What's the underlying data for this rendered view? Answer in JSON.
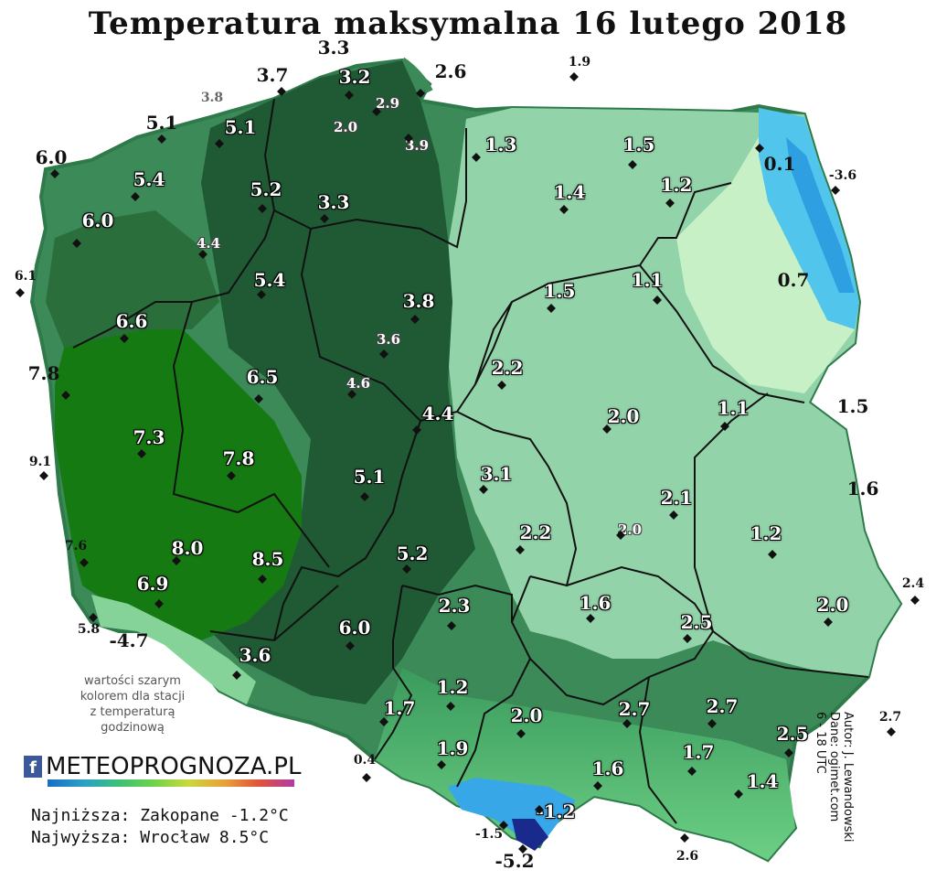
{
  "title": "Temperatura maksymalna 16 lutego 2018",
  "note_lines": [
    "wartości szarym",
    "kolorem dla stacji",
    "z temperaturą",
    "godzinową"
  ],
  "logo": {
    "icon": "facebook-icon",
    "text": "METEOPROGNOZA.PL"
  },
  "stats": {
    "min": "Najniższa: Zakopane -1.2°C",
    "max": "Najwyższa: Wrocław 8.5°C"
  },
  "credit_lines": [
    "Autor: J. Lewandowski",
    "Dane: ogimet.com",
    "6 - 18 UTC"
  ],
  "colors": {
    "dark_green": "#1f5a35",
    "mid_green": "#3c8a58",
    "light_green": "#92d3a9",
    "pale_green": "#c8f0c6",
    "cyan": "#52c5ec",
    "bright_green": "#157a12"
  },
  "stations": [
    {
      "id": "s1",
      "value": "3.3",
      "style": "b"
    },
    {
      "id": "s2",
      "value": "3.7",
      "style": "b"
    },
    {
      "id": "s3",
      "value": "3.2",
      "style": "w"
    },
    {
      "id": "s4",
      "value": "2.6",
      "style": "b"
    },
    {
      "id": "s5",
      "value": "1.9",
      "style": "bs"
    },
    {
      "id": "s6",
      "value": "3.8",
      "style": "gr"
    },
    {
      "id": "s7",
      "value": "2.9",
      "style": "g"
    },
    {
      "id": "s8",
      "value": "5.1",
      "style": "b"
    },
    {
      "id": "s9",
      "value": "5.1",
      "style": "w"
    },
    {
      "id": "s10",
      "value": "2.0",
      "style": "g"
    },
    {
      "id": "s11",
      "value": "3.9",
      "style": "g"
    },
    {
      "id": "s12",
      "value": "1.3",
      "style": "w"
    },
    {
      "id": "s13",
      "value": "1.5",
      "style": "w"
    },
    {
      "id": "s14",
      "value": "0.1",
      "style": "b"
    },
    {
      "id": "s15",
      "value": "-3.6",
      "style": "bs"
    },
    {
      "id": "s16",
      "value": "6.0",
      "style": "b"
    },
    {
      "id": "s17",
      "value": "5.4",
      "style": "w"
    },
    {
      "id": "s18",
      "value": "5.2",
      "style": "w"
    },
    {
      "id": "s19",
      "value": "3.3",
      "style": "w"
    },
    {
      "id": "s20",
      "value": "1.4",
      "style": "w"
    },
    {
      "id": "s21",
      "value": "1.2",
      "style": "w"
    },
    {
      "id": "s22",
      "value": "6.0",
      "style": "w"
    },
    {
      "id": "s23",
      "value": "4.4",
      "style": "g"
    },
    {
      "id": "s24",
      "value": "6.1",
      "style": "bs"
    },
    {
      "id": "s25",
      "value": "5.4",
      "style": "w"
    },
    {
      "id": "s26",
      "value": "0.7",
      "style": "b"
    },
    {
      "id": "s27",
      "value": "3.8",
      "style": "w"
    },
    {
      "id": "s28",
      "value": "1.5",
      "style": "w"
    },
    {
      "id": "s29",
      "value": "1.1",
      "style": "w"
    },
    {
      "id": "s30",
      "value": "6.6",
      "style": "w"
    },
    {
      "id": "s31",
      "value": "3.6",
      "style": "g"
    },
    {
      "id": "s32",
      "value": "7.8",
      "style": "b"
    },
    {
      "id": "s33",
      "value": "6.5",
      "style": "w"
    },
    {
      "id": "s34",
      "value": "4.6",
      "style": "g"
    },
    {
      "id": "s35",
      "value": "2.2",
      "style": "w"
    },
    {
      "id": "s36",
      "value": "4.4",
      "style": "w"
    },
    {
      "id": "s37",
      "value": "2.0",
      "style": "w"
    },
    {
      "id": "s38",
      "value": "1.1",
      "style": "w"
    },
    {
      "id": "s39",
      "value": "1.5",
      "style": "b"
    },
    {
      "id": "s40",
      "value": "7.3",
      "style": "w"
    },
    {
      "id": "s41",
      "value": "9.1",
      "style": "bs"
    },
    {
      "id": "s42",
      "value": "7.8",
      "style": "w"
    },
    {
      "id": "s43",
      "value": "5.1",
      "style": "w"
    },
    {
      "id": "s44",
      "value": "3.1",
      "style": "w"
    },
    {
      "id": "s45",
      "value": "1.6",
      "style": "b"
    },
    {
      "id": "s46",
      "value": "2.1",
      "style": "w"
    },
    {
      "id": "s47",
      "value": "2.0",
      "style": "g"
    },
    {
      "id": "s48",
      "value": "2.2",
      "style": "w"
    },
    {
      "id": "s49",
      "value": "1.2",
      "style": "w"
    },
    {
      "id": "s50",
      "value": "7.6",
      "style": "bs"
    },
    {
      "id": "s51",
      "value": "8.0",
      "style": "w"
    },
    {
      "id": "s52",
      "value": "8.5",
      "style": "w"
    },
    {
      "id": "s53",
      "value": "5.2",
      "style": "w"
    },
    {
      "id": "s54",
      "value": "2.4",
      "style": "bs"
    },
    {
      "id": "s55",
      "value": "6.9",
      "style": "w"
    },
    {
      "id": "s56",
      "value": "1.6",
      "style": "w"
    },
    {
      "id": "s57",
      "value": "2.0",
      "style": "w"
    },
    {
      "id": "s58",
      "value": "5.8",
      "style": "bs"
    },
    {
      "id": "s59",
      "value": "-4.7",
      "style": "b"
    },
    {
      "id": "s60",
      "value": "2.3",
      "style": "w"
    },
    {
      "id": "s61",
      "value": "2.5",
      "style": "w"
    },
    {
      "id": "s62",
      "value": "6.0",
      "style": "w"
    },
    {
      "id": "s63",
      "value": "3.6",
      "style": "w"
    },
    {
      "id": "s64",
      "value": "1.2",
      "style": "w"
    },
    {
      "id": "s65",
      "value": "2.7",
      "style": "w"
    },
    {
      "id": "s66",
      "value": "2.7",
      "style": "w"
    },
    {
      "id": "s67",
      "value": "1.7",
      "style": "w"
    },
    {
      "id": "s68",
      "value": "2.0",
      "style": "w"
    },
    {
      "id": "s69",
      "value": "2.7",
      "style": "bs"
    },
    {
      "id": "s70",
      "value": "2.5",
      "style": "w"
    },
    {
      "id": "s71",
      "value": "1.9",
      "style": "w"
    },
    {
      "id": "s72",
      "value": "1.7",
      "style": "w"
    },
    {
      "id": "s73",
      "value": "0.4",
      "style": "bs"
    },
    {
      "id": "s74",
      "value": "1.6",
      "style": "w"
    },
    {
      "id": "s75",
      "value": "1.4",
      "style": "w"
    },
    {
      "id": "s76",
      "value": "-1.2",
      "style": "w"
    },
    {
      "id": "s77",
      "value": "-1.5",
      "style": "bs"
    },
    {
      "id": "s78",
      "value": "-5.2",
      "style": "b"
    },
    {
      "id": "s79",
      "value": "2.6",
      "style": "bs"
    }
  ]
}
